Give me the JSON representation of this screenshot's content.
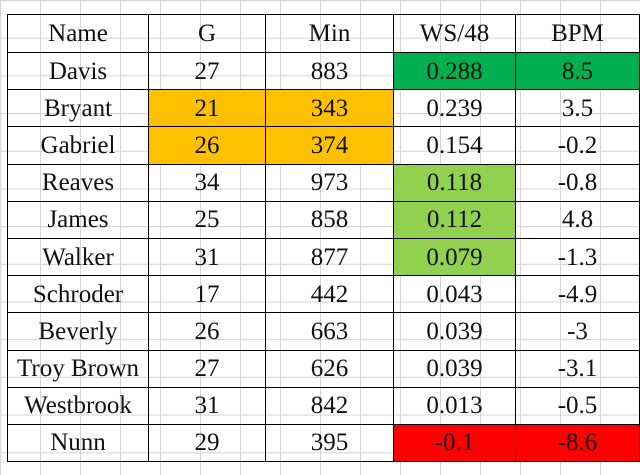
{
  "colors": {
    "orange": "#FFC000",
    "dark_green": "#00B050",
    "light_green": "#92D050",
    "red": "#FF0000",
    "grid": "#D4D4D4"
  },
  "table": {
    "headers": [
      "Name",
      "G",
      "Min",
      "WS/48",
      "BPM"
    ],
    "rows": [
      {
        "name": "Davis",
        "g": "27",
        "min": "883",
        "ws48": "0.288",
        "bpm": "8.5",
        "fill": {
          "ws48": "dark_green",
          "bpm": "dark_green"
        }
      },
      {
        "name": "Bryant",
        "g": "21",
        "min": "343",
        "ws48": "0.239",
        "bpm": "3.5",
        "fill": {
          "g": "orange",
          "min": "orange"
        }
      },
      {
        "name": "Gabriel",
        "g": "26",
        "min": "374",
        "ws48": "0.154",
        "bpm": "-0.2",
        "fill": {
          "g": "orange",
          "min": "orange"
        }
      },
      {
        "name": "Reaves",
        "g": "34",
        "min": "973",
        "ws48": "0.118",
        "bpm": "-0.8",
        "fill": {
          "ws48": "light_green"
        }
      },
      {
        "name": "James",
        "g": "25",
        "min": "858",
        "ws48": "0.112",
        "bpm": "4.8",
        "fill": {
          "ws48": "light_green"
        }
      },
      {
        "name": "Walker",
        "g": "31",
        "min": "877",
        "ws48": "0.079",
        "bpm": "-1.3",
        "fill": {
          "ws48": "light_green"
        }
      },
      {
        "name": "Schroder",
        "g": "17",
        "min": "442",
        "ws48": "0.043",
        "bpm": "-4.9",
        "fill": {}
      },
      {
        "name": "Beverly",
        "g": "26",
        "min": "663",
        "ws48": "0.039",
        "bpm": "-3",
        "fill": {}
      },
      {
        "name": "Troy Brown",
        "g": "27",
        "min": "626",
        "ws48": "0.039",
        "bpm": "-3.1",
        "fill": {}
      },
      {
        "name": "Westbrook",
        "g": "31",
        "min": "842",
        "ws48": "0.013",
        "bpm": "-0.5",
        "fill": {}
      },
      {
        "name": "Nunn",
        "g": "29",
        "min": "395",
        "ws48": "-0.1",
        "bpm": "-8.6",
        "fill": {
          "ws48": "red",
          "bpm": "red"
        }
      }
    ]
  }
}
